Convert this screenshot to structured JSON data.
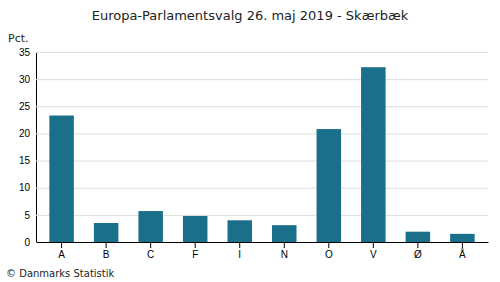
{
  "chart_data": {
    "type": "bar",
    "title": "Europa-Parlamentsvalg 26. maj 2019 - Skærbæk",
    "categories": [
      "A",
      "B",
      "C",
      "F",
      "I",
      "N",
      "O",
      "V",
      "Ø",
      "Å"
    ],
    "values": [
      23.3,
      3.5,
      5.7,
      4.8,
      4.0,
      3.1,
      20.8,
      32.2,
      1.9,
      1.5
    ],
    "color": "#1a6f8a",
    "ylim": [
      0,
      35
    ],
    "yticks": [
      0,
      5,
      10,
      15,
      20,
      25,
      30,
      35
    ],
    "ylabel": "Pct.",
    "footer": "© Danmarks Statistik",
    "grid": true
  }
}
